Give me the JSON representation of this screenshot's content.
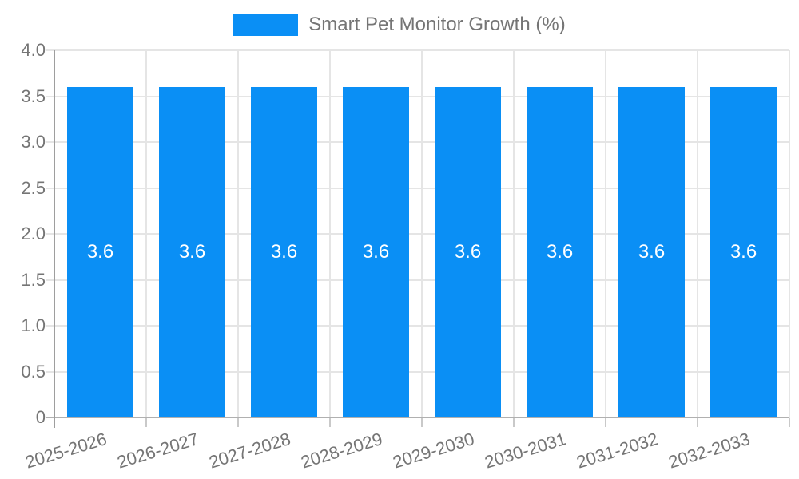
{
  "legend": {
    "label": "Smart Pet Monitor Growth (%)"
  },
  "chart_data": {
    "type": "bar",
    "title": "",
    "categories": [
      "2025-2026",
      "2026-2027",
      "2027-2028",
      "2028-2029",
      "2029-2030",
      "2030-2031",
      "2031-2032",
      "2032-2033"
    ],
    "series": [
      {
        "name": "Smart Pet Monitor Growth (%)",
        "values": [
          3.6,
          3.6,
          3.6,
          3.6,
          3.6,
          3.6,
          3.6,
          3.6
        ],
        "bar_labels": [
          "3.6",
          "3.6",
          "3.6",
          "3.6",
          "3.6",
          "3.6",
          "3.6",
          "3.6"
        ]
      }
    ],
    "xlabel": "",
    "ylabel": "",
    "ylim": [
      0,
      4
    ],
    "ytick_labels": [
      "4.0",
      "3.5",
      "3.0",
      "2.5",
      "2.0",
      "1.5",
      "1.0",
      "0.5",
      "0"
    ],
    "ytick_values": [
      4.0,
      3.5,
      3.0,
      2.5,
      2.0,
      1.5,
      1.0,
      0.5,
      0
    ],
    "grid": true,
    "legend_position": "top",
    "x_label_rotation_deg": -17,
    "colors": {
      "bar": "#0a8ff5",
      "bar_value_text": "#ffffff",
      "axis_label_text": "#757575",
      "gridline": "#e5e5e5",
      "axis_line": "#9e9e9e",
      "baseline": "#b0b0b0",
      "tick": "#c9c9c9",
      "background": "#ffffff"
    }
  }
}
